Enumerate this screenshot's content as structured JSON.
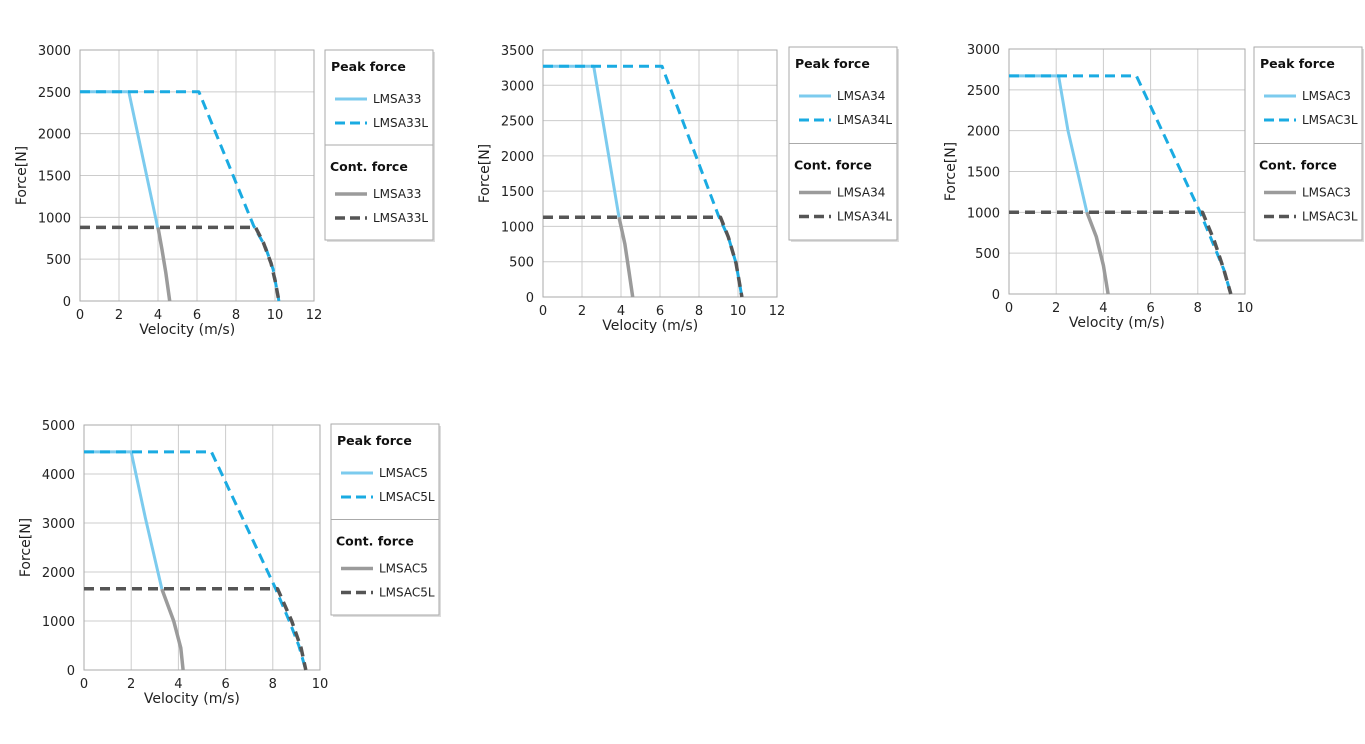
{
  "colors": {
    "peak_solid": "#7ccbee",
    "peak_dashed": "#1aabe2",
    "cont_solid": "#9b9b9b",
    "cont_dashed": "#555555",
    "grid": "#cccccc",
    "frame": "#aaaaaa"
  },
  "chart_data": [
    {
      "type": "line",
      "xlabel": "Velocity (m/s)",
      "ylabel": "Force[N]",
      "xlim": [
        0,
        12
      ],
      "ylim": [
        0,
        3000
      ],
      "xticks": [
        "0",
        "2",
        "4",
        "6",
        "8",
        "10",
        "12"
      ],
      "yticks": [
        "0",
        "500",
        "1000",
        "1500",
        "2000",
        "2500",
        "3000"
      ],
      "legend": {
        "peak_heading": "Peak force",
        "cont_heading": "Cont. force"
      },
      "series": [
        {
          "name": "LMSA33",
          "group": "peak",
          "style": "solid",
          "points": [
            [
              0,
              2500
            ],
            [
              2.5,
              2500
            ],
            [
              4.0,
              860
            ]
          ]
        },
        {
          "name": "LMSA33L",
          "group": "peak",
          "style": "dashed",
          "points": [
            [
              0,
              2500
            ],
            [
              6.1,
              2500
            ],
            [
              8.9,
              900
            ],
            [
              9.5,
              650
            ],
            [
              9.9,
              380
            ],
            [
              10.2,
              0
            ]
          ]
        },
        {
          "name": "LMSA33",
          "group": "cont",
          "style": "solid",
          "points": [
            [
              4.0,
              880
            ],
            [
              4.2,
              620
            ],
            [
              4.4,
              340
            ],
            [
              4.6,
              0
            ]
          ]
        },
        {
          "name": "LMSA33L",
          "group": "cont",
          "style": "dashed",
          "points": [
            [
              0,
              880
            ],
            [
              9.0,
              880
            ],
            [
              9.4,
              700
            ],
            [
              9.8,
              450
            ],
            [
              10.0,
              250
            ],
            [
              10.2,
              0
            ]
          ]
        }
      ]
    },
    {
      "type": "line",
      "xlabel": "Velocity (m/s)",
      "ylabel": "Force[N]",
      "xlim": [
        0,
        12
      ],
      "ylim": [
        0,
        3500
      ],
      "xticks": [
        "0",
        "2",
        "4",
        "6",
        "8",
        "10",
        "12"
      ],
      "yticks": [
        "0",
        "500",
        "1000",
        "1500",
        "2000",
        "2500",
        "3000",
        "3500"
      ],
      "legend": {
        "peak_heading": "Peak force",
        "cont_heading": "Cont. force"
      },
      "series": [
        {
          "name": "LMSA34",
          "group": "peak",
          "style": "solid",
          "points": [
            [
              0,
              3270
            ],
            [
              2.6,
              3270
            ],
            [
              3.9,
              1130
            ]
          ]
        },
        {
          "name": "LMSA34L",
          "group": "peak",
          "style": "dashed",
          "points": [
            [
              0,
              3270
            ],
            [
              6.1,
              3270
            ],
            [
              9.0,
              1150
            ],
            [
              9.5,
              850
            ],
            [
              9.9,
              480
            ],
            [
              10.2,
              0
            ]
          ]
        },
        {
          "name": "LMSA34",
          "group": "cont",
          "style": "solid",
          "points": [
            [
              3.9,
              1130
            ],
            [
              4.2,
              750
            ],
            [
              4.4,
              380
            ],
            [
              4.6,
              0
            ]
          ]
        },
        {
          "name": "LMSA34L",
          "group": "cont",
          "style": "dashed",
          "points": [
            [
              0,
              1130
            ],
            [
              9.1,
              1130
            ],
            [
              9.5,
              850
            ],
            [
              9.9,
              480
            ],
            [
              10.2,
              0
            ]
          ]
        }
      ]
    },
    {
      "type": "line",
      "xlabel": "Velocity (m/s)",
      "ylabel": "Force[N]",
      "xlim": [
        0,
        10
      ],
      "ylim": [
        0,
        3000
      ],
      "xticks": [
        "0",
        "2",
        "4",
        "6",
        "8",
        "10"
      ],
      "yticks": [
        "0",
        "500",
        "1000",
        "1500",
        "2000",
        "2500",
        "3000"
      ],
      "legend": {
        "peak_heading": "Peak force",
        "cont_heading": "Cont. force"
      },
      "series": [
        {
          "name": "LMSAC3",
          "group": "peak",
          "style": "solid",
          "points": [
            [
              0,
              2670
            ],
            [
              2.1,
              2670
            ],
            [
              2.5,
              2000
            ],
            [
              3.3,
              1000
            ]
          ]
        },
        {
          "name": "LMSAC3L",
          "group": "peak",
          "style": "dashed",
          "points": [
            [
              0,
              2670
            ],
            [
              5.4,
              2670
            ],
            [
              8.1,
              1000
            ],
            [
              8.6,
              650
            ],
            [
              9.1,
              300
            ],
            [
              9.4,
              0
            ]
          ]
        },
        {
          "name": "LMSAC3",
          "group": "cont",
          "style": "solid",
          "points": [
            [
              3.3,
              1000
            ],
            [
              3.7,
              700
            ],
            [
              4.0,
              350
            ],
            [
              4.2,
              0
            ]
          ]
        },
        {
          "name": "LMSAC3L",
          "group": "cont",
          "style": "dashed",
          "points": [
            [
              0,
              1000
            ],
            [
              8.2,
              1000
            ],
            [
              8.7,
              650
            ],
            [
              9.1,
              300
            ],
            [
              9.4,
              0
            ]
          ]
        }
      ]
    },
    {
      "type": "line",
      "xlabel": "Velocity (m/s)",
      "ylabel": "Force[N]",
      "xlim": [
        0,
        10
      ],
      "ylim": [
        0,
        5000
      ],
      "xticks": [
        "0",
        "2",
        "4",
        "6",
        "8",
        "10"
      ],
      "yticks": [
        "0",
        "1000",
        "2000",
        "3000",
        "4000",
        "5000"
      ],
      "legend": {
        "peak_heading": "Peak force",
        "cont_heading": "Cont. force"
      },
      "series": [
        {
          "name": "LMSAC5",
          "group": "peak",
          "style": "solid",
          "points": [
            [
              0,
              4450
            ],
            [
              2.0,
              4450
            ],
            [
              2.6,
              3100
            ],
            [
              3.3,
              1650
            ]
          ]
        },
        {
          "name": "LMSAC5L",
          "group": "peak",
          "style": "dashed",
          "points": [
            [
              0,
              4450
            ],
            [
              5.4,
              4450
            ],
            [
              8.1,
              1680
            ],
            [
              8.7,
              1000
            ],
            [
              9.1,
              500
            ],
            [
              9.4,
              0
            ]
          ]
        },
        {
          "name": "LMSAC5",
          "group": "cont",
          "style": "solid",
          "points": [
            [
              3.3,
              1650
            ],
            [
              3.8,
              1000
            ],
            [
              4.1,
              450
            ],
            [
              4.2,
              0
            ]
          ]
        },
        {
          "name": "LMSAC5L",
          "group": "cont",
          "style": "dashed",
          "points": [
            [
              0,
              1660
            ],
            [
              8.2,
              1660
            ],
            [
              8.8,
              1000
            ],
            [
              9.2,
              450
            ],
            [
              9.4,
              0
            ]
          ]
        }
      ]
    }
  ]
}
